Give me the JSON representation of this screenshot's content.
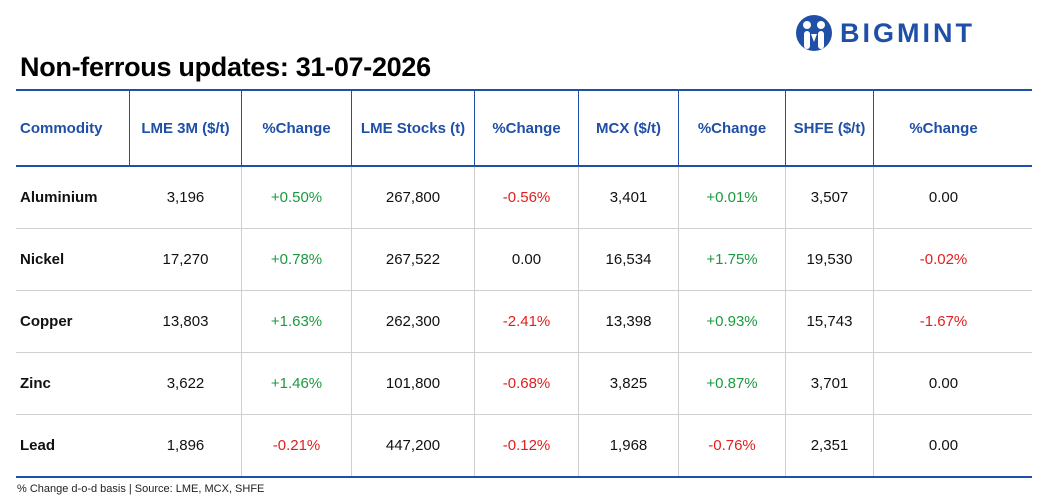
{
  "brand": {
    "name": "BIGMINT",
    "logo_icon": "bigmint-logo-icon",
    "color": "#1f4fa6"
  },
  "title": "Non-ferrous updates: 31-07-2026",
  "table": {
    "headers": [
      "Commodity",
      "LME 3M ($/t)",
      "%Change",
      "LME Stocks (t)",
      "%Change",
      "MCX ($/t)",
      "%Change",
      "SHFE ($/t)",
      "%Change"
    ],
    "rows": [
      [
        "Aluminium",
        "3,196",
        "+0.50%",
        "267,800",
        "-0.56%",
        "3,401",
        "+0.01%",
        "3,507",
        "0.00"
      ],
      [
        "Nickel",
        "17,270",
        "+0.78%",
        "267,522",
        "0.00",
        "16,534",
        "+1.75%",
        "19,530",
        "-0.02%"
      ],
      [
        "Copper",
        "13,803",
        "+1.63%",
        "262,300",
        "-2.41%",
        "13,398",
        "+0.93%",
        "15,743",
        "-1.67%"
      ],
      [
        "Zinc",
        "3,622",
        "+1.46%",
        "101,800",
        "-0.68%",
        "3,825",
        "+0.87%",
        "3,701",
        "0.00"
      ],
      [
        "Lead",
        "1,896",
        "-0.21%",
        "447,200",
        "-0.12%",
        "1,968",
        "-0.76%",
        "2,351",
        "0.00"
      ]
    ]
  },
  "colors": {
    "positive": "#1a9a3e",
    "negative": "#e02020",
    "header": "#1f4fa6"
  },
  "footer": "% Change d-o-d basis | Source: LME, MCX, SHFE"
}
